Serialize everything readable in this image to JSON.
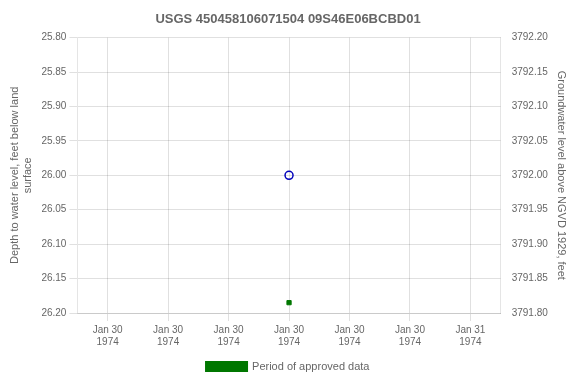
{
  "chart_data": {
    "type": "line",
    "title": "USGS 450458106071504 09S46E06BCBD01",
    "categories": [
      "Jan 30\n1974",
      "Jan 30\n1974",
      "Jan 30\n1974",
      "Jan 30\n1974",
      "Jan 30\n1974",
      "Jan 30\n1974",
      "Jan 31\n1974"
    ],
    "series": [
      {
        "values": [
          null,
          null,
          null,
          26.0,
          null,
          null,
          null
        ],
        "color": "#0000bb",
        "marker": "open_circle",
        "line_style": "none"
      },
      {
        "name": "Period of approved data",
        "values": [
          null,
          null,
          null,
          26.185,
          null,
          null,
          null
        ],
        "color": "#007700",
        "marker": "square",
        "line_style": "none"
      }
    ],
    "y_label": "Depth to water level, feet below land\nsurface",
    "y2_label": "Groundwater level above NGVD 1929, feet",
    "ylim": [
      26.2,
      25.8
    ],
    "yticks": [
      {
        "value": 25.8,
        "label": "25.80"
      },
      25.85,
      {
        "value": 25.9,
        "label": "25.90"
      },
      25.95,
      {
        "value": 26.0,
        "label": "26.00"
      },
      26.05,
      {
        "value": 26.1,
        "label": "26.10"
      },
      26.15,
      {
        "value": 26.2,
        "label": "26.20"
      }
    ],
    "y2lim": [
      3791.8,
      3792.2
    ],
    "y2ticks": [
      {
        "value": 3791.8,
        "label": "3791.80"
      },
      3791.85,
      {
        "value": 3791.9,
        "label": "3791.90"
      },
      3791.95,
      {
        "value": 3792.0,
        "label": "3792.00"
      },
      3792.05,
      {
        "value": 3792.1,
        "label": "3792.10"
      },
      3792.15,
      {
        "value": 3792.2,
        "label": "3792.20"
      }
    ],
    "grid": true,
    "legend": "bottom"
  }
}
